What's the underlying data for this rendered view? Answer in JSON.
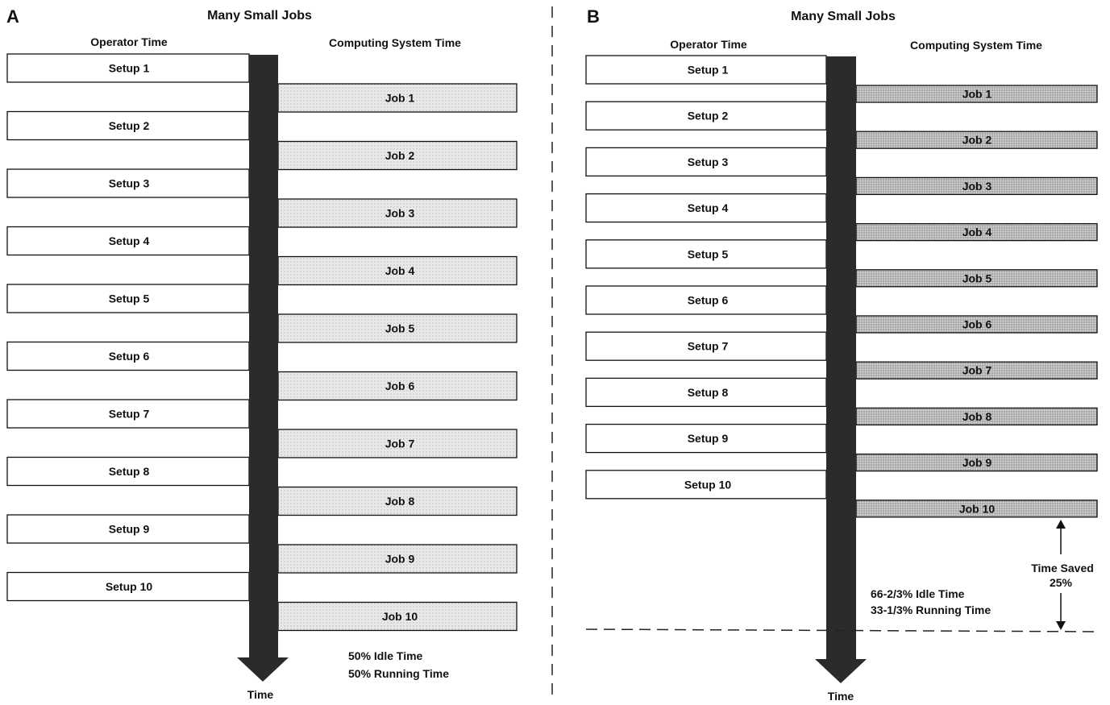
{
  "panel_a": {
    "letter": "A",
    "title": "Many Small Jobs",
    "operator_header": "Operator Time",
    "computing_header": "Computing System Time",
    "setups": [
      "Setup 1",
      "Setup 2",
      "Setup 3",
      "Setup 4",
      "Setup 5",
      "Setup 6",
      "Setup 7",
      "Setup 8",
      "Setup 9",
      "Setup 10"
    ],
    "jobs": [
      "Job 1",
      "Job 2",
      "Job 3",
      "Job 4",
      "Job 5",
      "Job 6",
      "Job 7",
      "Job 8",
      "Job 9",
      "Job 10"
    ],
    "idle_text": "50% Idle Time",
    "running_text": "50% Running Time",
    "time_label": "Time"
  },
  "panel_b": {
    "letter": "B",
    "title": "Many Small Jobs",
    "operator_header": "Operator Time",
    "computing_header": "Computing System Time",
    "setups": [
      "Setup 1",
      "Setup 2",
      "Setup 3",
      "Setup 4",
      "Setup 5",
      "Setup 6",
      "Setup 7",
      "Setup 8",
      "Setup 9",
      "Setup 10"
    ],
    "jobs": [
      "Job 1",
      "Job 2",
      "Job 3",
      "Job 4",
      "Job 5",
      "Job 6",
      "Job 7",
      "Job 8",
      "Job 9",
      "Job 10"
    ],
    "idle_text": "66-2/3% Idle Time",
    "running_text": "33-1/3% Running Time",
    "time_saved_line1": "Time Saved",
    "time_saved_line2": "25%",
    "time_label": "Time"
  },
  "colors": {
    "timeline": "#2b2b2b",
    "job_fill_a": "#e4e4e4",
    "job_fill_b": "#b9b9b9",
    "box_stroke": "#111111"
  }
}
